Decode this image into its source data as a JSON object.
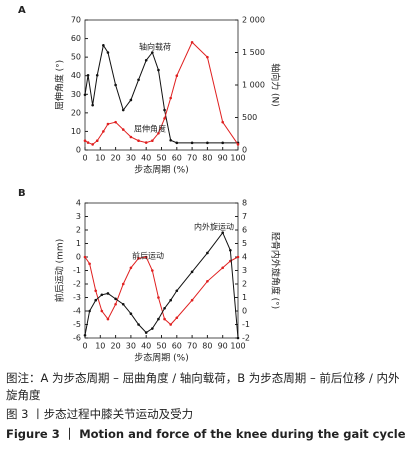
{
  "chart_data": [
    {
      "type": "line",
      "label": "A",
      "xlabel": "步态周期 (%)",
      "ylabel": "屈伸角度 (°)",
      "y2label": "轴向力 (N)",
      "xlim": [
        0,
        100
      ],
      "xticks": [
        0,
        10,
        20,
        30,
        40,
        50,
        60,
        70,
        80,
        90,
        100
      ],
      "ylim": [
        0,
        70
      ],
      "yticks": [
        0,
        10,
        20,
        30,
        40,
        50,
        60,
        70
      ],
      "y2lim": [
        0,
        2000
      ],
      "y2ticks": [
        0,
        500,
        {
          "value": 1000,
          "label": "1 000"
        },
        {
          "value": 1500,
          "label": "1 500"
        },
        {
          "value": 2000,
          "label": "2 000"
        }
      ],
      "x": [
        0,
        2,
        5,
        8,
        12,
        15,
        20,
        25,
        30,
        35,
        40,
        44,
        48,
        52,
        56,
        60,
        70,
        80,
        90,
        100
      ],
      "series": [
        {
          "name": "轴向载荷",
          "color": "#111111",
          "axis": "y2",
          "values": [
            850,
            1150,
            690,
            1150,
            1610,
            1500,
            1000,
            615,
            770,
            1080,
            1380,
            1500,
            1230,
            615,
            150,
            110,
            110,
            110,
            110,
            110
          ]
        },
        {
          "name": "屈伸角度",
          "color": "#e02020",
          "values": [
            5,
            4,
            3,
            5,
            10,
            14,
            15,
            11,
            7,
            5,
            4,
            5,
            9,
            17,
            28,
            40,
            58,
            50,
            15,
            3
          ]
        }
      ]
    },
    {
      "type": "line",
      "label": "B",
      "xlabel": "步态周期 (%)",
      "ylabel": "前后运动 (mm)",
      "y2label": "胫骨内外旋角度 (°)",
      "xlim": [
        0,
        100
      ],
      "xticks": [
        0,
        10,
        20,
        30,
        40,
        50,
        60,
        70,
        80,
        90,
        100
      ],
      "ylim": [
        -6,
        4
      ],
      "yticks": [
        -6,
        -5,
        -4,
        -3,
        -2,
        -1,
        0,
        1,
        2,
        3,
        4
      ],
      "y2lim": [
        -2,
        8
      ],
      "y2ticks": [
        -2,
        -1,
        0,
        1,
        2,
        3,
        4,
        5,
        6,
        7,
        8
      ],
      "x": [
        0,
        3,
        7,
        11,
        15,
        20,
        25,
        30,
        35,
        40,
        44,
        48,
        52,
        56,
        60,
        70,
        80,
        90,
        95,
        100
      ],
      "series": [
        {
          "name": "前后运动",
          "color": "#e02020",
          "values": [
            0,
            -0.5,
            -2.5,
            -4,
            -4.6,
            -3.5,
            -2,
            -0.8,
            -0.1,
            0,
            -1,
            -3,
            -4.6,
            -5,
            -4.5,
            -3.2,
            -1.8,
            -0.8,
            -0.3,
            0
          ]
        },
        {
          "name": "内外旋运动",
          "color": "#111111",
          "axis": "y2",
          "values": [
            -1.8,
            0,
            0.8,
            1.2,
            1.3,
            0.9,
            0.5,
            -0.2,
            -1,
            -1.6,
            -1.3,
            -0.6,
            0.2,
            0.8,
            1.5,
            2.9,
            4.3,
            5.8,
            4.5,
            -2
          ]
        }
      ]
    }
  ],
  "caption": {
    "note": "图注：A 为步态周期 – 屈曲角度 / 轴向载荷，B 为步态周期 – 前后位移 / 内外旋角度",
    "title_cn": "图 3 丨步态过程中膝关节运动及受力",
    "title_en": "Figure 3 ｜ Motion and force of the knee during the gait cycle"
  }
}
